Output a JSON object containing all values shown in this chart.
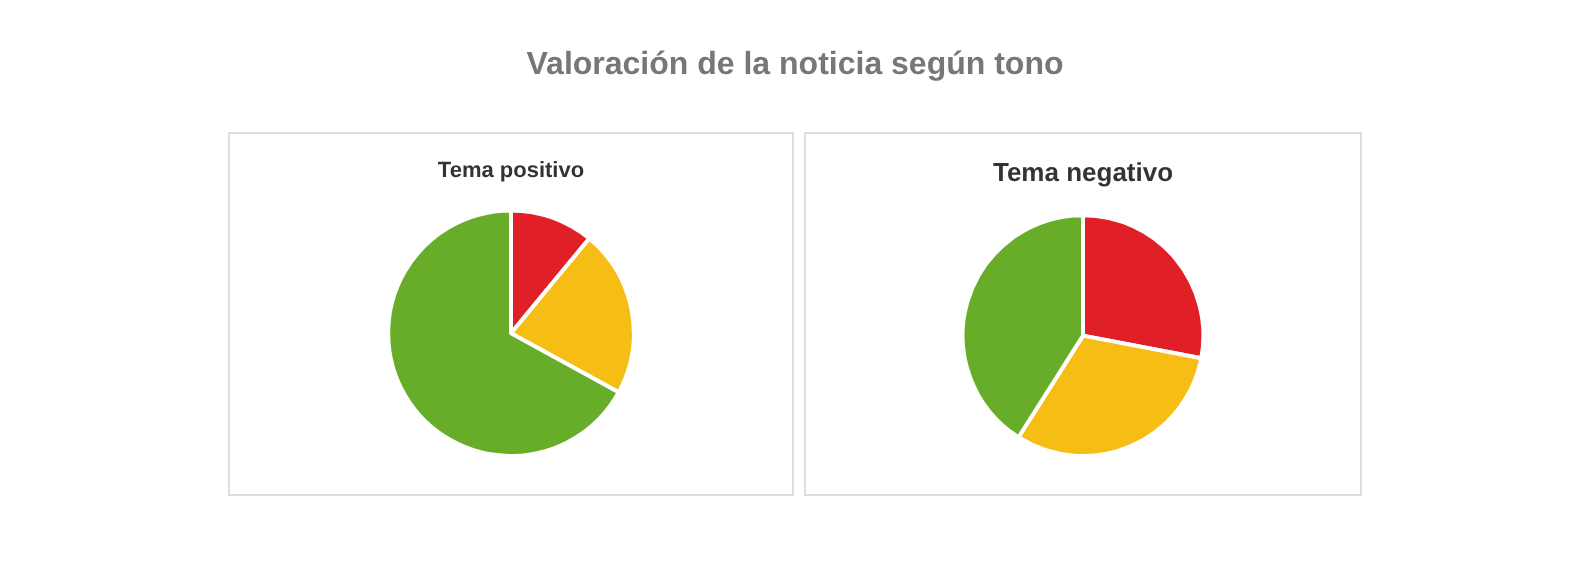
{
  "chart_data": [
    {
      "type": "pie",
      "title": "Tema positivo",
      "annotations": [
        "Valoración de la noticia según tono"
      ],
      "categories": [
        null,
        null,
        null
      ],
      "values": [
        11,
        22,
        67
      ],
      "colors": [
        "#e01f26",
        "#f6be14",
        "#67ad2a"
      ],
      "legend": false
    },
    {
      "type": "pie",
      "title": "Tema negativo",
      "categories": [
        null,
        null,
        null
      ],
      "values": [
        28,
        31,
        41
      ],
      "colors": [
        "#e01f26",
        "#f6be14",
        "#67ad2a"
      ],
      "legend": false
    }
  ]
}
